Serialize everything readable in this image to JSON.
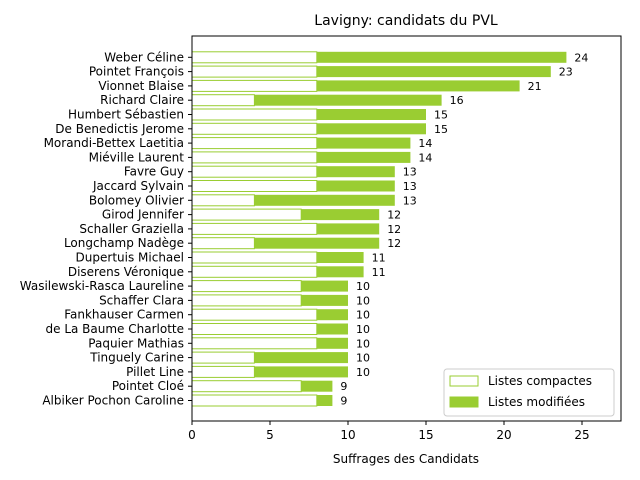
{
  "chart_data": {
    "type": "bar",
    "orientation": "horizontal",
    "stacked": true,
    "title": "Lavigny: candidats du PVL",
    "xlabel": "Suffrages des Candidats",
    "ylabel": "",
    "xlim": [
      0,
      27.5
    ],
    "xticks": [
      0,
      5,
      10,
      15,
      20,
      25
    ],
    "grid": false,
    "legend_position": "bottom-right",
    "categories": [
      "Weber Céline",
      "Pointet François",
      "Vionnet Blaise",
      "Richard Claire",
      "Humbert Sébastien",
      "De Benedictis Jerome",
      "Morandi-Bettex Laetitia",
      "Miéville Laurent",
      "Favre Guy",
      "Jaccard Sylvain",
      "Bolomey Olivier",
      "Girod Jennifer",
      "Schaller Graziella",
      "Longchamp Nadège",
      "Dupertuis Michael",
      "Diserens Véronique",
      "Wasilewski-Rasca Laureline",
      "Schaffer Clara",
      "Fankhauser Carmen",
      "de La Baume Charlotte",
      "Paquier Mathias",
      "Tinguely Carine",
      "Pillet Line",
      "Pointet Cloé",
      "Albiker Pochon Caroline"
    ],
    "series": [
      {
        "name": "Listes compactes",
        "color": "#9acd32",
        "style": "outline",
        "values": [
          8,
          8,
          8,
          4,
          8,
          8,
          8,
          8,
          8,
          8,
          4,
          7,
          8,
          4,
          8,
          8,
          7,
          7,
          8,
          8,
          8,
          4,
          4,
          7,
          8
        ]
      },
      {
        "name": "Listes modifiées",
        "color": "#9acd32",
        "style": "filled",
        "values": [
          16,
          15,
          13,
          12,
          7,
          7,
          6,
          6,
          5,
          5,
          9,
          5,
          4,
          8,
          3,
          3,
          3,
          3,
          2,
          2,
          2,
          6,
          6,
          2,
          1
        ]
      }
    ],
    "totals": [
      24,
      23,
      21,
      16,
      15,
      15,
      14,
      14,
      13,
      13,
      13,
      12,
      12,
      12,
      11,
      11,
      10,
      10,
      10,
      10,
      10,
      10,
      10,
      9,
      9
    ]
  }
}
